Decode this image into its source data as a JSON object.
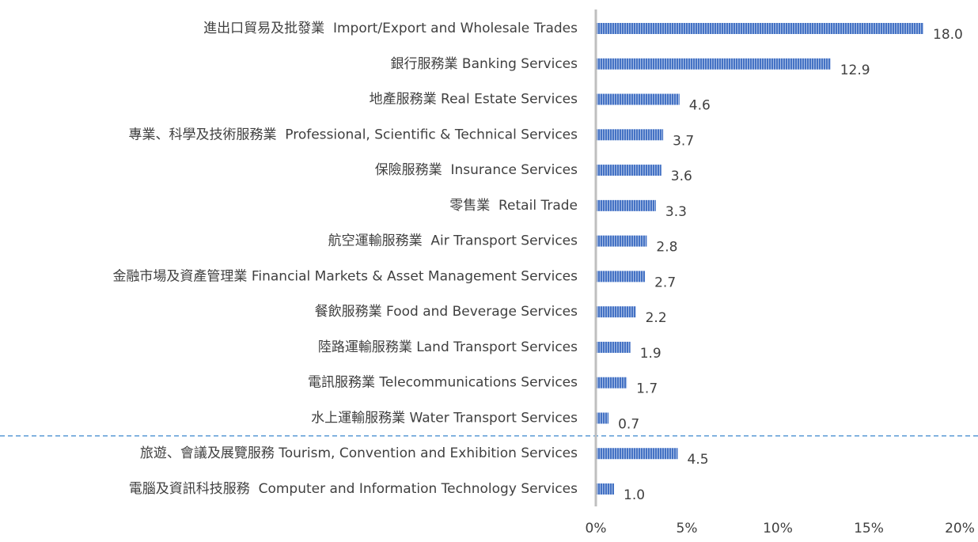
{
  "chart_data": {
    "type": "hbar",
    "categories": [
      "進出口貿易及批發業  Import/Export and Wholesale Trades",
      "銀行服務業 Banking Services",
      "地產服務業 Real Estate Services",
      "專業、科學及技術服務業  Professional, Scientific & Technical Services",
      "保險服務業  Insurance Services",
      "零售業  Retail Trade",
      "航空運輸服務業  Air Transport Services",
      "金融市場及資產管理業 Financial Markets & Asset Management Services",
      "餐飲服務業 Food and Beverage Services",
      "陸路運輸服務業 Land Transport Services",
      "電訊服務業 Telecommunications Services",
      "水上運輸服務業 Water Transport Services",
      "旅遊、會議及展覽服務 Tourism, Convention and Exhibition Services",
      "電腦及資訊科技服務  Computer and Information Technology Services"
    ],
    "values": [
      18.0,
      12.9,
      4.6,
      3.7,
      3.6,
      3.3,
      2.8,
      2.7,
      2.2,
      1.9,
      1.7,
      0.7,
      4.5,
      1.0
    ],
    "value_labels": [
      "18.0",
      "12.9",
      "4.6",
      "3.7",
      "3.6",
      "3.3",
      "2.8",
      "2.7",
      "2.2",
      "1.9",
      "1.7",
      "0.7",
      "4.5",
      "1.0"
    ],
    "color": "#4472c4",
    "xlim": [
      0,
      20
    ],
    "xticks": [
      {
        "value": 0,
        "label": "0%"
      },
      {
        "value": 5,
        "label": "5%"
      },
      {
        "value": 10,
        "label": "10%"
      },
      {
        "value": 15,
        "label": "15%"
      },
      {
        "value": 20,
        "label": "20%"
      }
    ]
  }
}
